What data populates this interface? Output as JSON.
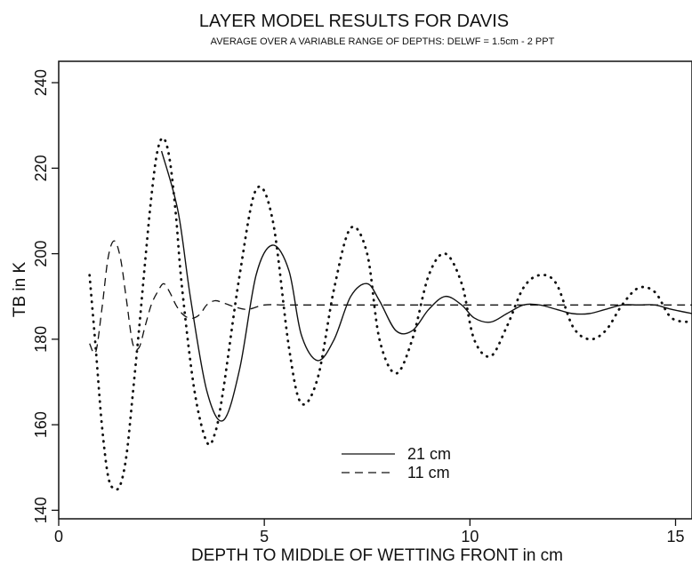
{
  "chart_data": {
    "type": "line",
    "title": "LAYER MODEL RESULTS FOR DAVIS",
    "subtitle": "AVERAGE OVER A VARIABLE RANGE OF DEPTHS: DELWF = 1.5cm - 2 PPT",
    "xlabel": "DEPTH TO MIDDLE OF WETTING FRONT in cm",
    "ylabel": "TB in K",
    "xlim": [
      0,
      15.4
    ],
    "ylim": [
      138,
      245
    ],
    "xticks": [
      0,
      5,
      10,
      15
    ],
    "yticks": [
      140,
      160,
      180,
      200,
      220,
      240
    ],
    "grid": false,
    "legend_position": "lower-center",
    "series": [
      {
        "name": "21 cm",
        "style": "solid",
        "x": [
          2.5,
          2.9,
          3.2,
          3.6,
          4.0,
          4.4,
          4.8,
          5.2,
          5.6,
          5.9,
          6.3,
          6.7,
          7.1,
          7.5,
          7.8,
          8.2,
          8.6,
          9.0,
          9.4,
          9.8,
          10.1,
          10.5,
          10.9,
          11.3,
          11.7,
          12.1,
          12.5,
          12.9,
          13.3,
          13.7,
          14.1,
          14.5,
          14.9,
          15.4
        ],
        "y": [
          224,
          210,
          190,
          168,
          161,
          173,
          195,
          202,
          196,
          181,
          175,
          180,
          190,
          193,
          189,
          182,
          182,
          187,
          190,
          188,
          185,
          184,
          186,
          188,
          188,
          187,
          186,
          186,
          187,
          188,
          188,
          188,
          187,
          186
        ]
      },
      {
        "name": "11 cm",
        "style": "dashed",
        "x": [
          0.75,
          0.9,
          1.05,
          1.2,
          1.35,
          1.5,
          1.65,
          1.8,
          1.95,
          2.1,
          2.25,
          2.4,
          2.55,
          2.7,
          2.85,
          3.0,
          3.15,
          3.3,
          3.45,
          3.6,
          3.8,
          4.0,
          4.3,
          4.6,
          5.0,
          5.5,
          6.0,
          7.0,
          8.0,
          9.0,
          10.0,
          11.0,
          12.0,
          13.0,
          14.0,
          15.4
        ],
        "y": [
          179,
          177,
          187,
          199,
          203,
          199,
          189,
          179,
          178,
          183,
          188,
          191,
          193,
          191,
          188,
          186,
          185,
          185,
          186,
          188,
          189,
          188.5,
          187.5,
          187,
          188,
          188,
          188,
          188,
          188,
          188,
          188,
          188,
          188,
          188,
          188,
          188
        ]
      },
      {
        "name": "",
        "style": "dotted",
        "x": [
          0.75,
          0.9,
          1.05,
          1.2,
          1.35,
          1.5,
          1.65,
          1.8,
          1.95,
          2.1,
          2.25,
          2.4,
          2.55,
          2.7,
          2.85,
          3.0,
          3.3,
          3.6,
          3.8,
          4.0,
          4.4,
          4.8,
          5.2,
          5.6,
          5.9,
          6.3,
          6.7,
          7.1,
          7.5,
          7.8,
          8.2,
          8.6,
          9.0,
          9.4,
          9.8,
          10.1,
          10.5,
          10.9,
          11.3,
          11.7,
          12.1,
          12.5,
          12.9,
          13.3,
          13.7,
          14.1,
          14.5,
          14.9,
          15.4
        ],
        "y": [
          195,
          178,
          160,
          148,
          145,
          146,
          153,
          167,
          182,
          198,
          213,
          224,
          227,
          222,
          209,
          192,
          168,
          156,
          158,
          168,
          195,
          215,
          208,
          178,
          165,
          171,
          192,
          206,
          200,
          180,
          172,
          180,
          195,
          200,
          193,
          180,
          176,
          183,
          192,
          195,
          193,
          183,
          180,
          182,
          188,
          192,
          191,
          185,
          184
        ]
      }
    ]
  }
}
